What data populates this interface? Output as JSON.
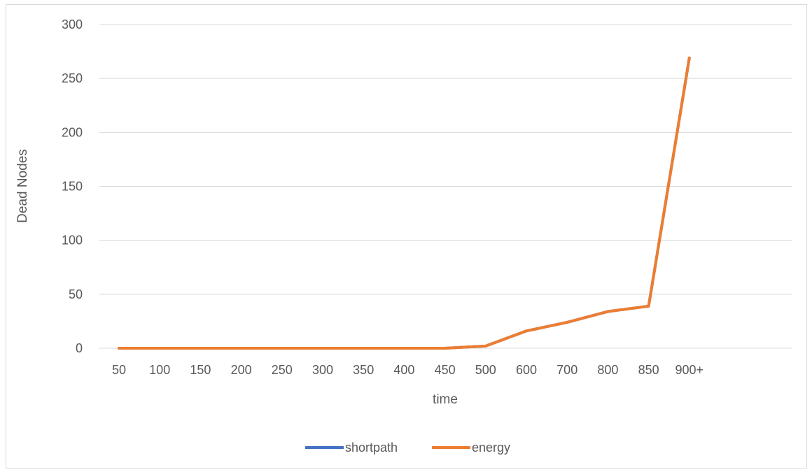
{
  "chart_data": {
    "type": "line",
    "title": "",
    "xlabel": "time",
    "ylabel": "Dead Nodes",
    "categories": [
      "50",
      "100",
      "150",
      "200",
      "250",
      "300",
      "350",
      "400",
      "450",
      "500",
      "600",
      "700",
      "800",
      "850",
      "900+"
    ],
    "ylim": [
      0,
      300
    ],
    "yticks": [
      0,
      50,
      100,
      150,
      200,
      250,
      300
    ],
    "grid": true,
    "legend_position": "bottom",
    "series": [
      {
        "name": "shortpath",
        "color": "#4472c4",
        "values": [
          0,
          0,
          0,
          0,
          0,
          0,
          0,
          0,
          0,
          2,
          16,
          24,
          34,
          39,
          269
        ]
      },
      {
        "name": "energy",
        "color": "#ed7d31",
        "values": [
          0,
          0,
          0,
          0,
          0,
          0,
          0,
          0,
          0,
          2,
          16,
          24,
          34,
          39,
          269
        ]
      }
    ]
  }
}
